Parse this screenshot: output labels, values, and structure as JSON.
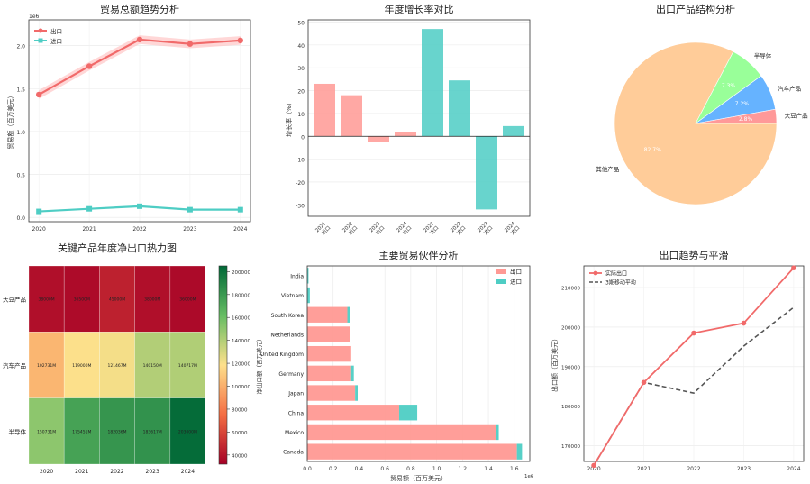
{
  "colors": {
    "export": "#f16a6a",
    "export_bar": "#ff9994",
    "import": "#4ecdc4",
    "band": "#ffc6c6",
    "pie_other": "#ffcc99",
    "pie_semi": "#99ff99",
    "pie_auto": "#66b3ff",
    "pie_soy": "#ff9999",
    "ma": "#555555"
  },
  "chart_data": [
    {
      "type": "line",
      "id": "trend",
      "title": "贸易总额趋势分析",
      "xlabel": "",
      "ylabel": "贸易额（百万美元）",
      "offset_label": "1e6",
      "x": [
        "2020",
        "2021",
        "2022",
        "2023",
        "2024"
      ],
      "ylim": [
        -0.05,
        2.3
      ],
      "yticks": [
        "0.0",
        "0.5",
        "1.0",
        "1.5",
        "2.0"
      ],
      "series": [
        {
          "name": "出口",
          "values": [
            1.43,
            1.76,
            2.07,
            2.02,
            2.06
          ],
          "band": 0.05
        },
        {
          "name": "进口",
          "values": [
            0.07,
            0.1,
            0.13,
            0.09,
            0.09
          ]
        }
      ]
    },
    {
      "type": "bar",
      "id": "growth",
      "title": "年度增长率对比",
      "ylabel": "增长率（%）",
      "ylim": [
        -35,
        51
      ],
      "yticks": [
        "-30",
        "-20",
        "-10",
        "0",
        "10",
        "20",
        "30",
        "40",
        "50"
      ],
      "categories": [
        "2021\n出口",
        "2022\n出口",
        "2023\n出口",
        "2024\n出口",
        "2021\n进口",
        "2022\n进口",
        "2023\n进口",
        "2024\n进口"
      ],
      "values": [
        23,
        18,
        -2.5,
        2,
        47,
        24.5,
        -32,
        4.5
      ],
      "groups": [
        "export",
        "export",
        "export",
        "export",
        "import",
        "import",
        "import",
        "import"
      ]
    },
    {
      "type": "pie",
      "id": "structure",
      "title": "出口产品结构分析",
      "slices": [
        {
          "label": "其他产品",
          "value": 82.7,
          "pct": "82.7%"
        },
        {
          "label": "半导体",
          "value": 7.3,
          "pct": "7.3%"
        },
        {
          "label": "汽车产品",
          "value": 7.2,
          "pct": "7.2%"
        },
        {
          "label": "大豆产品",
          "value": 2.8,
          "pct": "2.8%"
        }
      ]
    },
    {
      "type": "heatmap",
      "id": "heat",
      "title": "关键产品年度净出口热力图",
      "columns": [
        "2020",
        "2021",
        "2022",
        "2023",
        "2024"
      ],
      "rows": [
        "大豆产品",
        "汽车产品",
        "半导体"
      ],
      "values": [
        [
          38000,
          36500,
          45000,
          38000,
          36000
        ],
        [
          102731,
          119000,
          121467,
          140150,
          140717
        ],
        [
          150731,
          175451,
          182036,
          183617,
          203000
        ]
      ],
      "labels": [
        [
          "38000M",
          "36500M",
          "45000M",
          "38000M",
          "36000M"
        ],
        [
          "102731M",
          "119000M",
          "121467M",
          "140150M",
          "140717M"
        ],
        [
          "150731M",
          "175451M",
          "182036M",
          "183617M",
          "203000M"
        ]
      ],
      "vmin": 32000,
      "vmax": 205000,
      "colorbar_ticks": [
        "40000",
        "60000",
        "80000",
        "100000",
        "120000",
        "140000",
        "160000",
        "180000",
        "200000"
      ],
      "colorbar_label": "净出口额（百万美元）"
    },
    {
      "type": "bar",
      "id": "partners",
      "orientation": "horizontal",
      "title": "主要贸易伙伴分析",
      "xlabel": "贸易额（百万美元）",
      "offset_label": "1e6",
      "xlim": [
        0,
        1.72
      ],
      "xticks": [
        "0.0",
        "0.2",
        "0.4",
        "0.6",
        "0.8",
        "1.0",
        "1.2",
        "1.4",
        "1.6"
      ],
      "categories": [
        "India",
        "Vietnam",
        "South Korea",
        "Netherlands",
        "United Kingdom",
        "Germany",
        "Japan",
        "China",
        "Mexico",
        "Canada"
      ],
      "series": [
        {
          "name": "出口",
          "values": [
            0.0,
            0.0,
            0.31,
            0.33,
            0.34,
            0.34,
            0.37,
            0.71,
            1.46,
            1.62
          ]
        },
        {
          "name": "进口",
          "values": [
            0.01,
            0.02,
            0.02,
            0.0,
            0.0,
            0.02,
            0.02,
            0.14,
            0.02,
            0.04
          ]
        }
      ]
    },
    {
      "type": "line",
      "id": "smooth",
      "title": "出口趋势与平滑",
      "ylabel": "出口额（百万美元）",
      "x": [
        "2020",
        "2021",
        "2022",
        "2023",
        "2024"
      ],
      "ylim": [
        166000,
        215500
      ],
      "yticks": [
        "170000",
        "180000",
        "190000",
        "200000",
        "210000"
      ],
      "series": [
        {
          "name": "实际出口",
          "values": [
            165000,
            186000,
            198500,
            201000,
            215000
          ]
        },
        {
          "name": "3期移动平均",
          "values": [
            165000,
            186000,
            183300,
            195200,
            205000
          ]
        }
      ]
    }
  ]
}
